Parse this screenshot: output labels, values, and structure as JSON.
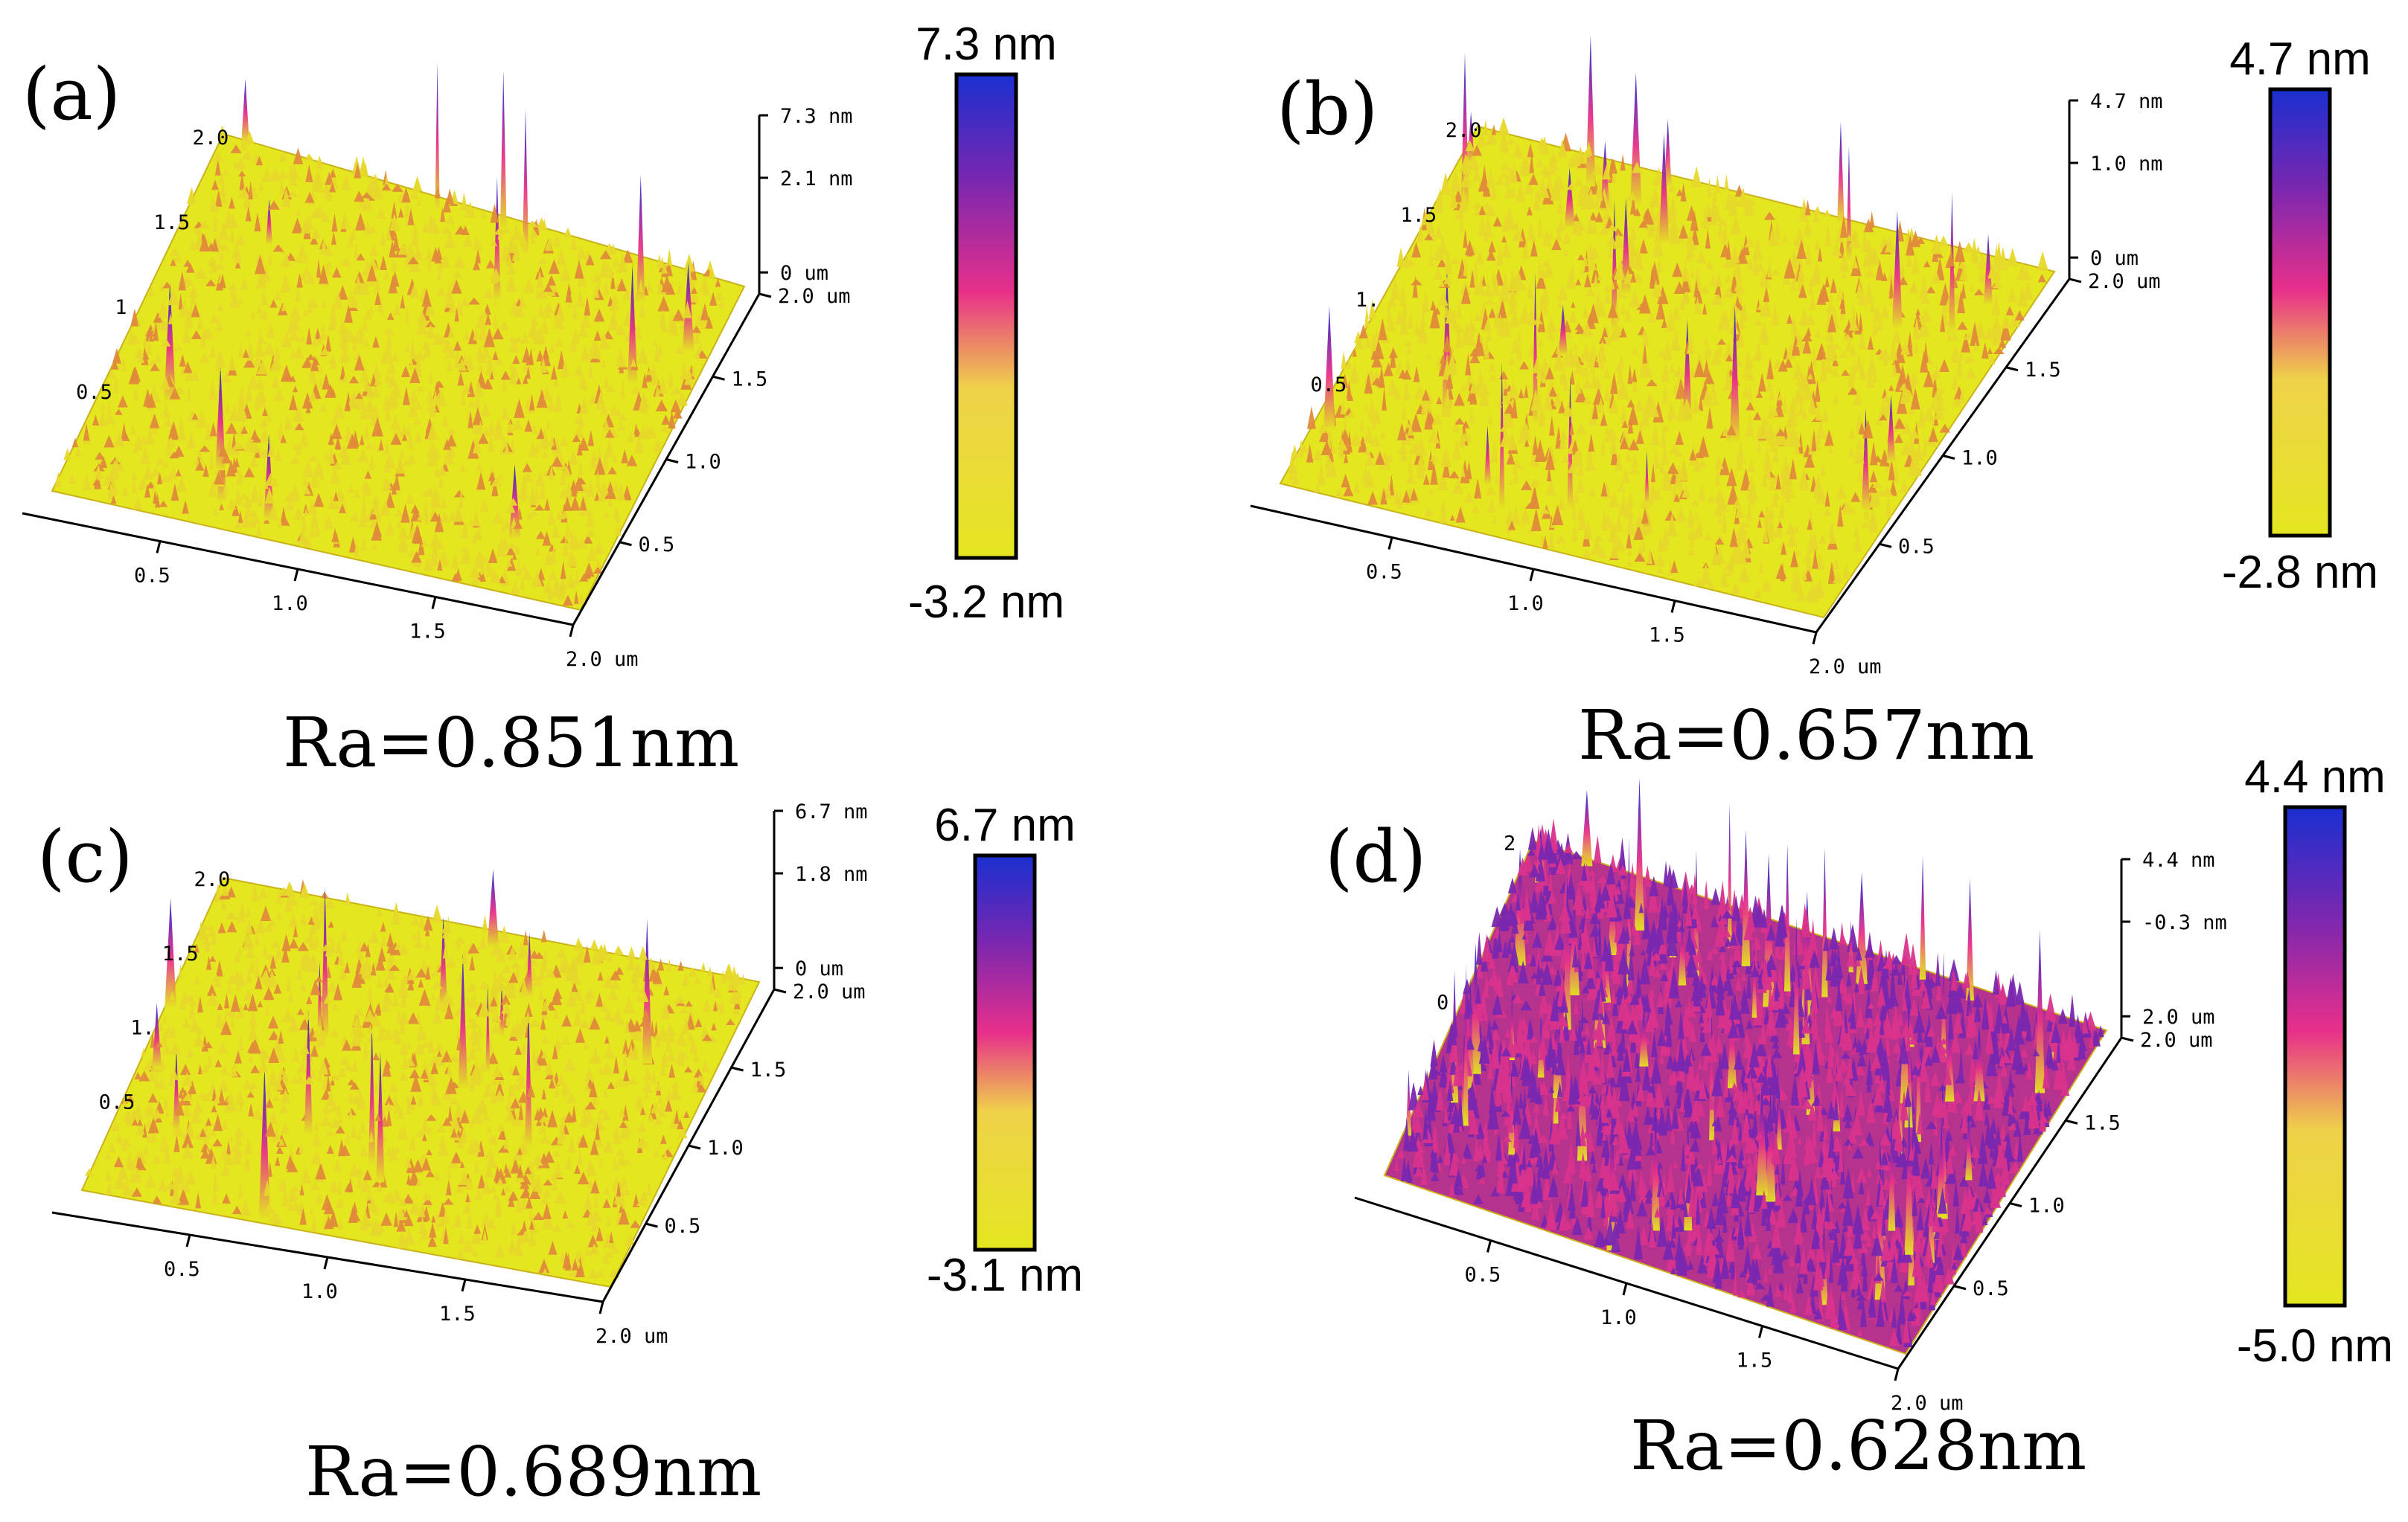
{
  "colors": {
    "low": "#e4e620",
    "mid": "#e8308a",
    "high": "#1a2fd0",
    "upper_mid": "#7a27b0"
  },
  "panels": [
    {
      "label": "(a)",
      "ra": "Ra=0.851nm",
      "cb_max": "7.3 nm",
      "cb_min": "-3.2 nm",
      "z_ticks": [
        "7.3 nm",
        "2.1 nm",
        "0 um"
      ],
      "y_ticks": [
        "2.0",
        "1.5",
        "1",
        "0.5"
      ],
      "x_ticks": [
        "0.5",
        "1.0",
        "1.5",
        "2.0 um"
      ],
      "r_ticks": [
        "2.0 um",
        "1.5",
        "1.0",
        "0.5"
      ],
      "roughness": 0.45,
      "spikes": 0.35
    },
    {
      "label": "(b)",
      "ra": "Ra=0.657nm",
      "cb_max": "4.7 nm",
      "cb_min": "-2.8 nm",
      "z_ticks": [
        "4.7 nm",
        "1.0 nm",
        "0 um"
      ],
      "y_ticks": [
        "2.0",
        "1.5",
        "1.",
        "0.5"
      ],
      "x_ticks": [
        "0.5",
        "1.0",
        "1.5",
        "2.0 um"
      ],
      "r_ticks": [
        "2.0 um",
        "1.5",
        "1.0",
        "0.5"
      ],
      "roughness": 0.6,
      "spikes": 0.45
    },
    {
      "label": "(c)",
      "ra": "Ra=0.689nm",
      "cb_max": "6.7 nm",
      "cb_min": "-3.1 nm",
      "z_ticks": [
        "6.7 nm",
        "1.8 nm",
        "0 um"
      ],
      "y_ticks": [
        "2.0",
        "1.5",
        "1.",
        "0.5"
      ],
      "x_ticks": [
        "0.5",
        "1.0",
        "1.5",
        "2.0 um"
      ],
      "r_ticks": [
        "2.0 um",
        "1.5",
        "1.0",
        "0.5"
      ],
      "roughness": 0.4,
      "spikes": 0.4
    },
    {
      "label": "(d)",
      "ra": "Ra=0.628nm",
      "cb_max": "4.4 nm",
      "cb_min": "-5.0 nm",
      "z_ticks": [
        "4.4 nm",
        "-0.3 nm",
        "2.0 um"
      ],
      "y_ticks": [
        "2",
        "0"
      ],
      "x_ticks": [
        "0.5",
        "1.0",
        "1.5",
        "2.0 um"
      ],
      "r_ticks": [
        "2.0 um",
        "1.5",
        "1.0",
        "0.5"
      ],
      "roughness": 0.95,
      "spikes": 0.9
    }
  ]
}
